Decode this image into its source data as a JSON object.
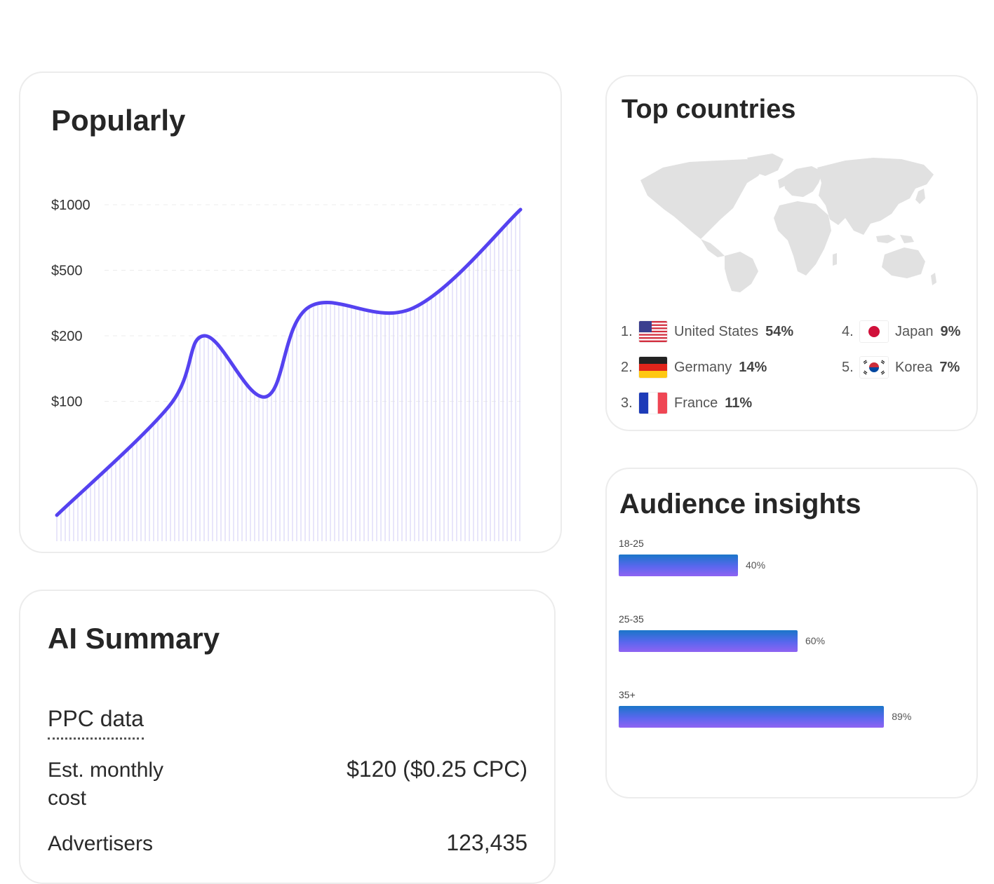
{
  "popularly": {
    "title": "Popularly",
    "chart_data": {
      "type": "line",
      "title": "Popularly",
      "y_scale": "log",
      "y_ticks": [
        "$1000",
        "$500",
        "$200",
        "$100"
      ],
      "y_tick_values": [
        1000,
        500,
        200,
        100
      ],
      "grid": true,
      "series": [
        {
          "values": [
            30,
            95,
            200,
            105,
            105,
            300,
            295,
            950
          ]
        }
      ],
      "colors": {
        "line": "#5542f0",
        "fill_lines": "#d9d6f6",
        "grid": "#ececec"
      }
    }
  },
  "countries": {
    "title": "Top countries",
    "map": "world-map",
    "items": [
      {
        "rank": "1.",
        "name": "United States",
        "pct": "54%",
        "flag": "us-flag"
      },
      {
        "rank": "2.",
        "name": "Germany",
        "pct": "14%",
        "flag": "germany-flag"
      },
      {
        "rank": "3.",
        "name": "France",
        "pct": "11%",
        "flag": "france-flag"
      },
      {
        "rank": "4.",
        "name": "Japan",
        "pct": "9%",
        "flag": "japan-flag"
      },
      {
        "rank": "5.",
        "name": "Korea",
        "pct": "7%",
        "flag": "korea-flag"
      }
    ]
  },
  "audience": {
    "title": "Audience insights",
    "chart_data": {
      "type": "bar",
      "orientation": "horizontal",
      "categories": [
        "18-25",
        "25-35",
        "35+"
      ],
      "values": [
        40,
        60,
        89
      ],
      "labels": [
        "40%",
        "60%",
        "89%"
      ],
      "colors": {
        "top": "#1a76c9",
        "bottom": "#8f63f2"
      }
    }
  },
  "summary": {
    "title": "AI Summary",
    "ppc_heading": "PPC data",
    "rows": [
      {
        "label": "Est. monthly cost",
        "value": "$120 ($0.25 CPC)"
      },
      {
        "label": "Advertisers",
        "value": "123,435"
      }
    ]
  }
}
